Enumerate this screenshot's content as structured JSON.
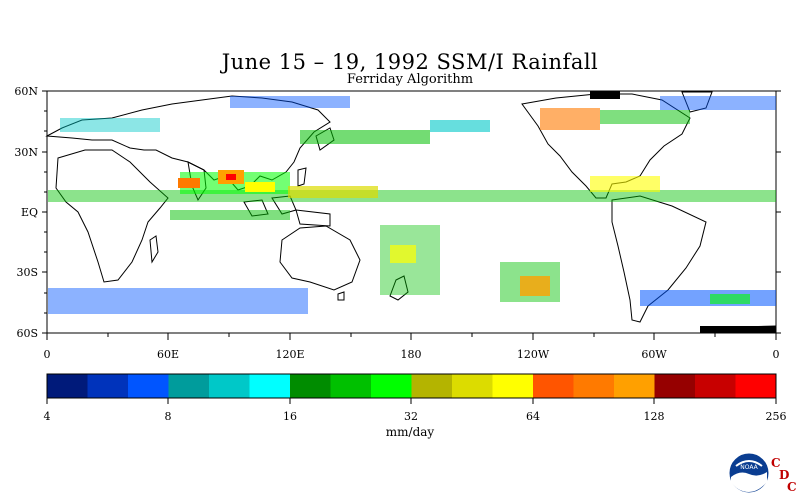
{
  "title": "June 15 – 19, 1992 SSM/I Rainfall",
  "subtitle": "Ferriday Algorithm",
  "lat_labels": [
    "60N",
    "30N",
    "EQ",
    "30S",
    "60S"
  ],
  "lon_labels": [
    "0",
    "60E",
    "120E",
    "180",
    "120W",
    "60W",
    "0"
  ],
  "colorbar": {
    "colors": [
      "#001a7a",
      "#0033bb",
      "#0055ff",
      "#009c9c",
      "#00c8c8",
      "#00ffff",
      "#008c00",
      "#00c000",
      "#00ff00",
      "#b4b400",
      "#dcdc00",
      "#ffff00",
      "#ff5500",
      "#ff7a00",
      "#ffa000",
      "#960000",
      "#c80000",
      "#ff0000"
    ],
    "tick_labels": [
      "4",
      "8",
      "16",
      "32",
      "64",
      "128",
      "256"
    ],
    "units": "mm/day"
  },
  "logo": {
    "text": "NOAA",
    "letters": [
      "C",
      "D",
      "C"
    ]
  },
  "icons": {
    "logo": "noaa-logo-icon"
  }
}
